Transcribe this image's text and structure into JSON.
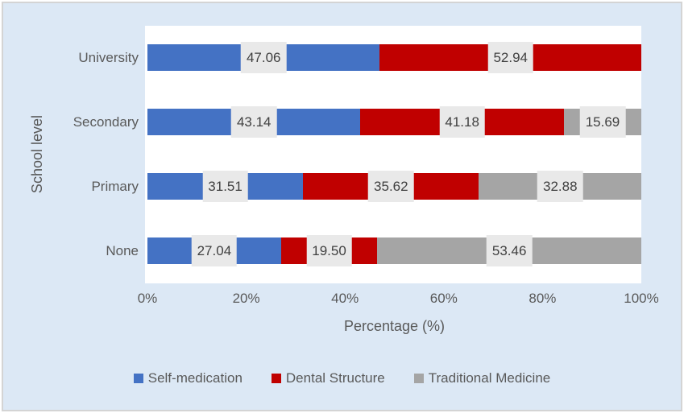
{
  "chart_data": {
    "type": "bar",
    "orientation": "horizontal",
    "stacked": true,
    "title": "",
    "xlabel": "Percentage (%)",
    "ylabel": "School level",
    "categories": [
      "University",
      "Secondary",
      "Primary",
      "None"
    ],
    "series": [
      {
        "name": "Self-medication",
        "color": "#4472C4",
        "values": [
          47.06,
          43.14,
          31.51,
          27.04
        ],
        "labels": [
          "47.06",
          "43.14",
          "31.51",
          "27.04"
        ]
      },
      {
        "name": "Dental Structure",
        "color": "#C00000",
        "values": [
          52.94,
          41.18,
          35.62,
          19.5
        ],
        "labels": [
          "52.94",
          "41.18",
          "35.62",
          "19.50"
        ]
      },
      {
        "name": "Traditional Medicine",
        "color": "#A5A5A5",
        "values": [
          0,
          15.69,
          32.88,
          53.46
        ],
        "labels": [
          "",
          "15.69",
          "32.88",
          "53.46"
        ]
      }
    ],
    "x_ticks": [
      "0%",
      "20%",
      "40%",
      "60%",
      "80%",
      "100%"
    ],
    "xlim": [
      0,
      100
    ],
    "grid": false,
    "legend_position": "bottom",
    "data_label_style": "boxed"
  },
  "style": {
    "background": "#DCE8F5",
    "plot_background": "#FFFFFF",
    "border_color": "#D4D4D4",
    "label_box_bg": "#E9E9E9",
    "label_text": "#404040",
    "axis_text": "#595959"
  }
}
